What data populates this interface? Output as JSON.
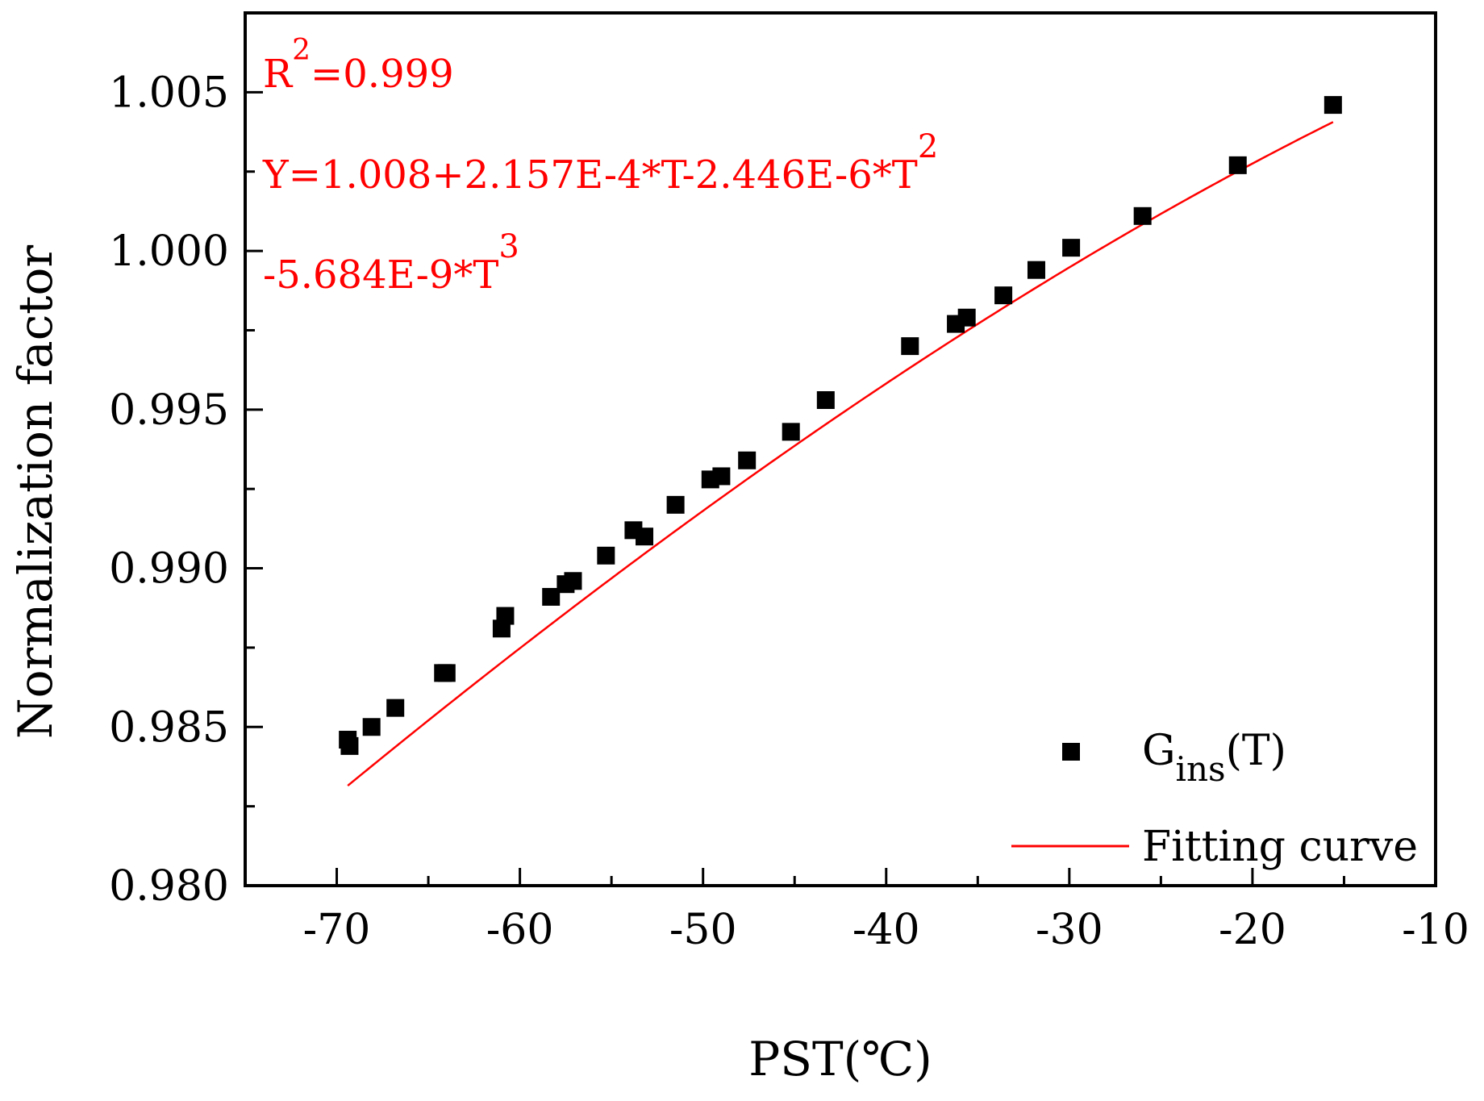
{
  "chart_data": {
    "type": "scatter",
    "title": "",
    "xlabel": "PST(℃)",
    "ylabel": "Normalization factor",
    "xlim": [
      -75,
      -10
    ],
    "ylim": [
      0.98,
      1.0075
    ],
    "x_ticks": [
      -70,
      -60,
      -50,
      -40,
      -30,
      -20,
      -10
    ],
    "x_tick_labels": [
      "-70",
      "-60",
      "-50",
      "-40",
      "-30",
      "-20",
      "-10"
    ],
    "y_ticks": [
      0.98,
      0.985,
      0.99,
      0.995,
      1.0,
      1.005
    ],
    "y_tick_labels": [
      "0.980",
      "0.985",
      "0.990",
      "0.995",
      "1.000",
      "1.005"
    ],
    "y_minor_ticks": [
      0.9825,
      0.9875,
      0.9925,
      0.9975,
      1.0025
    ],
    "grid": false,
    "legend_position": "bottom-right",
    "series": [
      {
        "name": "G",
        "name_subscript": "ins",
        "name_suffix": "(T)",
        "kind": "scatter",
        "marker": "square",
        "color": "#000000",
        "x": [
          -69.4,
          -69.3,
          -68.1,
          -66.8,
          -64.2,
          -64.0,
          -61.0,
          -60.8,
          -58.3,
          -57.5,
          -57.1,
          -55.3,
          -53.8,
          -53.2,
          -51.5,
          -49.6,
          -49.0,
          -47.6,
          -45.2,
          -43.3,
          -38.7,
          -36.2,
          -35.6,
          -33.6,
          -31.8,
          -29.9,
          -26.0,
          -20.8,
          -15.6
        ],
        "y": [
          0.9846,
          0.9844,
          0.985,
          0.9856,
          0.9867,
          0.9867,
          0.9881,
          0.9885,
          0.9891,
          0.9895,
          0.9896,
          0.9904,
          0.9912,
          0.991,
          0.992,
          0.9928,
          0.9929,
          0.9934,
          0.9943,
          0.9953,
          0.997,
          0.9977,
          0.9979,
          0.9986,
          0.9994,
          1.0001,
          1.0011,
          1.0027,
          1.0046
        ]
      },
      {
        "name": "Fitting curve",
        "kind": "line",
        "color": "#ff0000",
        "fit_coefficients": [
          1.008,
          0.0002157,
          -2.446e-06,
          -5.684e-09
        ],
        "x_range": [
          -69.4,
          -15.6
        ]
      }
    ],
    "annotations": {
      "r2_base": "R",
      "r2_exp": "2",
      "r2_value": "=0.999",
      "eq_line1_main": "Y=1.008+2.157E-4*T-2.446E-6*T",
      "eq_line1_exp": "2",
      "eq_line2_main": "-5.684E-9*T",
      "eq_line2_exp": "3",
      "color": "#ff0000"
    }
  }
}
